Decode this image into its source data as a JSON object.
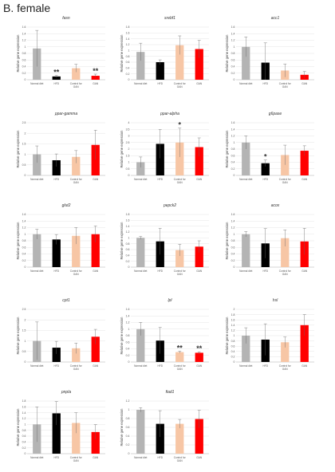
{
  "panel": {
    "title": "B. female"
  },
  "colors": {
    "normal": "#b4b4b4",
    "hfd": "#000000",
    "control": "#f7c6a5",
    "gan": "#ff0000"
  },
  "chart_data": [
    {
      "type": "bar",
      "title": "fasn",
      "ylabel": "Relative gene expression",
      "categories": [
        "Normal diet",
        "HFD",
        "Control for GAN",
        "GAN"
      ],
      "ylim": [
        0,
        1.6
      ],
      "yticks": [
        "0",
        "0.2",
        "0.4",
        "0.6",
        "0.8",
        "1",
        "1.2",
        "1.4",
        "1.6"
      ],
      "values": [
        0.95,
        0.1,
        0.35,
        0.12
      ],
      "errors": [
        0.55,
        0.03,
        0.12,
        0.05
      ],
      "significance": [
        "",
        "**",
        "",
        "**"
      ]
    },
    {
      "type": "bar",
      "title": "srebf1",
      "ylabel": "Relative gene expression",
      "categories": [
        "Normal diet",
        "HFD",
        "Control for GAN",
        "GAN"
      ],
      "ylim": [
        0,
        1.8
      ],
      "yticks": [
        "0",
        "0.2",
        "0.4",
        "0.6",
        "0.8",
        "1",
        "1.2",
        "1.4",
        "1.6",
        "1.8"
      ],
      "values": [
        0.95,
        0.6,
        1.18,
        1.05
      ],
      "errors": [
        0.3,
        0.08,
        0.32,
        0.3
      ],
      "significance": [
        "",
        "",
        "",
        ""
      ]
    },
    {
      "type": "bar",
      "title": "acc1",
      "ylabel": "Relative gene expression",
      "categories": [
        "Normal diet",
        "HFD",
        "Control for GAN",
        "GAN"
      ],
      "ylim": [
        0,
        1.6
      ],
      "yticks": [
        "0",
        "0.2",
        "0.4",
        "0.6",
        "0.8",
        "1",
        "1.2",
        "1.4",
        "1.6"
      ],
      "values": [
        1.0,
        0.52,
        0.28,
        0.15
      ],
      "errors": [
        0.3,
        0.6,
        0.2,
        0.1
      ],
      "significance": [
        "",
        "",
        "",
        ""
      ]
    },
    {
      "type": "bar",
      "title": "ppar-gamma",
      "ylabel": "Relative gene expression",
      "categories": [
        "Normal diet",
        "HFD",
        "Control for GAN",
        "GAN"
      ],
      "ylim": [
        0,
        2.5
      ],
      "yticks": [
        "0",
        "0.5",
        "1",
        "1.5",
        "2",
        "2.5"
      ],
      "values": [
        1.0,
        0.72,
        0.88,
        1.45
      ],
      "errors": [
        0.4,
        0.3,
        0.3,
        0.7
      ],
      "significance": [
        "",
        "",
        "",
        ""
      ]
    },
    {
      "type": "bar",
      "title": "ppar-alpha",
      "ylabel": "Relative gene expression",
      "categories": [
        "Normal diet",
        "HFD",
        "Control for GAN",
        "GAN"
      ],
      "ylim": [
        0,
        4
      ],
      "yticks": [
        "0",
        "0.5",
        "1",
        "1.5",
        "2",
        "2.5",
        "3",
        "3.5",
        "4"
      ],
      "values": [
        1.0,
        2.4,
        2.5,
        2.15
      ],
      "errors": [
        0.4,
        1.1,
        1.1,
        0.7
      ],
      "significance": [
        "",
        "",
        "*",
        ""
      ]
    },
    {
      "type": "bar",
      "title": "g6pase",
      "ylabel": "Relative gene expression",
      "categories": [
        "Normal diet",
        "HFD",
        "Control for GAN",
        "GAN"
      ],
      "ylim": [
        0,
        1.6
      ],
      "yticks": [
        "0",
        "0.2",
        "0.4",
        "0.6",
        "0.8",
        "1",
        "1.2",
        "1.4",
        "1.6"
      ],
      "values": [
        1.0,
        0.37,
        0.62,
        0.75
      ],
      "errors": [
        0.2,
        0.1,
        0.3,
        0.15
      ],
      "significance": [
        "",
        "*",
        "",
        ""
      ]
    },
    {
      "type": "bar",
      "title": "glut2",
      "ylabel": "Relative gene expression",
      "categories": [
        "Normal diet",
        "HFD",
        "Control for GAN",
        "GAN"
      ],
      "ylim": [
        0,
        1.6
      ],
      "yticks": [
        "0",
        "0.2",
        "0.4",
        "0.6",
        "0.8",
        "1",
        "1.2",
        "1.4",
        "1.6"
      ],
      "values": [
        1.0,
        0.84,
        0.95,
        1.0
      ],
      "errors": [
        0.15,
        0.15,
        0.25,
        0.25
      ],
      "significance": [
        "",
        "",
        "",
        ""
      ]
    },
    {
      "type": "bar",
      "title": "pepck2",
      "ylabel": "Relative gene expression",
      "categories": [
        "Normal diet",
        "HFD",
        "Control for GAN",
        "GAN"
      ],
      "ylim": [
        0,
        1.8
      ],
      "yticks": [
        "0",
        "0.2",
        "0.4",
        "0.6",
        "0.8",
        "1",
        "1.2",
        "1.4",
        "1.6",
        "1.8"
      ],
      "values": [
        1.0,
        0.88,
        0.58,
        0.7
      ],
      "errors": [
        0.05,
        0.45,
        0.2,
        0.2
      ],
      "significance": [
        "",
        "",
        "",
        ""
      ]
    },
    {
      "type": "bar",
      "title": "acox",
      "ylabel": "Relative gene expression",
      "categories": [
        "Normal diet",
        "HFD",
        "Control for GAN",
        "GAN"
      ],
      "ylim": [
        0,
        1.6
      ],
      "yticks": [
        "0",
        "0.2",
        "0.4",
        "0.6",
        "0.8",
        "1",
        "1.2",
        "1.4",
        "1.6"
      ],
      "values": [
        1.0,
        0.72,
        0.88,
        0.78
      ],
      "errors": [
        0.08,
        0.45,
        0.25,
        0.4
      ],
      "significance": [
        "",
        "",
        "",
        ""
      ]
    },
    {
      "type": "bar",
      "title": "cpt1",
      "ylabel": "Relative gene expression",
      "categories": [
        "Normal diet",
        "HFD",
        "Control for GAN",
        "GAN"
      ],
      "ylim": [
        0,
        2.5
      ],
      "yticks": [
        "0",
        "0.5",
        "1",
        "1.5",
        "2",
        "2.5"
      ],
      "values": [
        1.0,
        0.68,
        0.65,
        1.2
      ],
      "errors": [
        0.9,
        0.3,
        0.25,
        0.35
      ],
      "significance": [
        "",
        "",
        "",
        ""
      ]
    },
    {
      "type": "bar",
      "title": "lpl",
      "ylabel": "Relative gene expression",
      "categories": [
        "Normal diet",
        "HFD",
        "Control for GAN",
        "GAN"
      ],
      "ylim": [
        0,
        1.6
      ],
      "yticks": [
        "0",
        "0.2",
        "0.4",
        "0.6",
        "0.8",
        "1",
        "1.2",
        "1.4",
        "1.6"
      ],
      "values": [
        1.0,
        0.65,
        0.3,
        0.28
      ],
      "errors": [
        0.2,
        0.4,
        0.03,
        0.03
      ],
      "significance": [
        "",
        "",
        "**",
        "**"
      ]
    },
    {
      "type": "bar",
      "title": "hsl",
      "ylabel": "Relative gene expression",
      "categories": [
        "Normal diet",
        "HFD",
        "Control for GAN",
        "GAN"
      ],
      "ylim": [
        0,
        2
      ],
      "yticks": [
        "0",
        "0.2",
        "0.4",
        "0.6",
        "0.8",
        "1",
        "1.2",
        "1.4",
        "1.6",
        "1.8",
        "2"
      ],
      "values": [
        1.0,
        0.85,
        0.75,
        1.4
      ],
      "errors": [
        0.3,
        0.6,
        0.2,
        0.4
      ],
      "significance": [
        "",
        "",
        "",
        ""
      ]
    },
    {
      "type": "bar",
      "title": "pnpla",
      "ylabel": "Relative gene expression",
      "categories": [
        "Normal diet",
        "HFD",
        "Control for GAN",
        "GAN"
      ],
      "ylim": [
        0,
        1.8
      ],
      "yticks": [
        "0",
        "0.2",
        "0.4",
        "0.6",
        "0.8",
        "1",
        "1.2",
        "1.4",
        "1.6",
        "1.8"
      ],
      "values": [
        1.0,
        1.38,
        1.05,
        0.74
      ],
      "errors": [
        0.6,
        0.4,
        0.35,
        0.25
      ],
      "significance": [
        "",
        "",
        "",
        ""
      ]
    },
    {
      "type": "bar",
      "title": "fiad1",
      "ylabel": "Relative gene expression",
      "categories": [
        "Normal diet",
        "HFD",
        "Control for GAN",
        "GAN"
      ],
      "ylim": [
        0,
        1.2
      ],
      "yticks": [
        "0",
        "0.2",
        "0.4",
        "0.6",
        "0.8",
        "1",
        "1.2"
      ],
      "values": [
        1.0,
        0.68,
        0.68,
        0.79
      ],
      "errors": [
        0.05,
        0.3,
        0.1,
        0.2
      ],
      "significance": [
        "",
        "",
        "",
        ""
      ]
    }
  ]
}
